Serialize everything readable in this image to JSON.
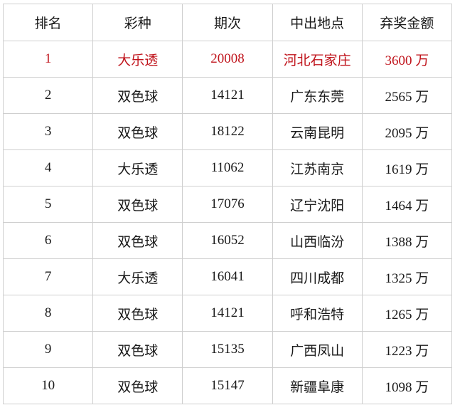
{
  "table": {
    "headers": [
      "排名",
      "彩种",
      "期次",
      "中出地点",
      "弃奖金额"
    ],
    "rows": [
      [
        "1",
        "大乐透",
        "20008",
        "河北石家庄",
        "3600 万"
      ],
      [
        "2",
        "双色球",
        "14121",
        "广东东莞",
        "2565 万"
      ],
      [
        "3",
        "双色球",
        "18122",
        "云南昆明",
        "2095 万"
      ],
      [
        "4",
        "大乐透",
        "11062",
        "江苏南京",
        "1619 万"
      ],
      [
        "5",
        "双色球",
        "17076",
        "辽宁沈阳",
        "1464 万"
      ],
      [
        "6",
        "双色球",
        "16052",
        "山西临汾",
        "1388 万"
      ],
      [
        "7",
        "大乐透",
        "16041",
        "四川成都",
        "1325 万"
      ],
      [
        "8",
        "双色球",
        "14121",
        "呼和浩特",
        "1265 万"
      ],
      [
        "9",
        "双色球",
        "15135",
        "广西凤山",
        "1223 万"
      ],
      [
        "10",
        "双色球",
        "15147",
        "新疆阜康",
        "1098 万"
      ]
    ],
    "highlight_color": "#c0141c"
  }
}
